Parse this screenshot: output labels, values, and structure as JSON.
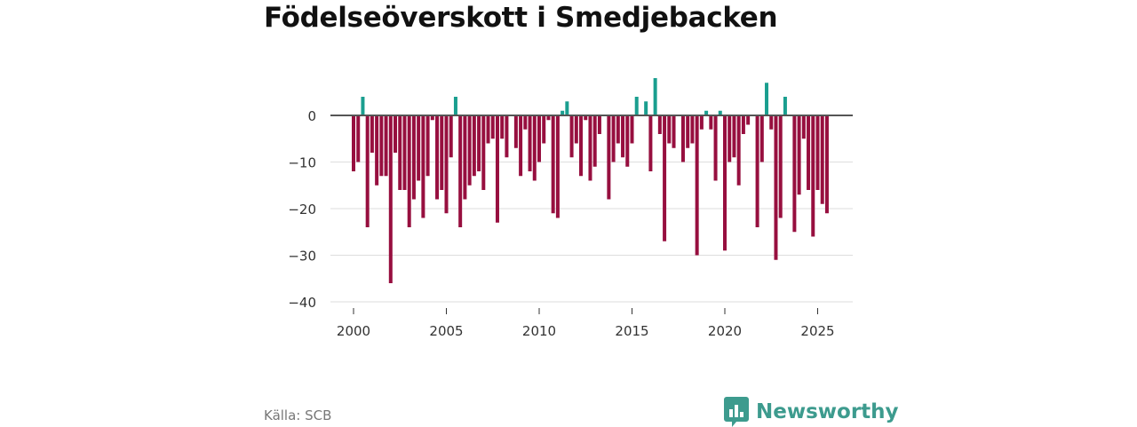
{
  "chart_data": {
    "type": "bar",
    "title": "Födelseöverskott i Smedjebacken",
    "xlabel": "",
    "ylabel": "",
    "x_start": 2000,
    "x_step_per_quarter": 0.25,
    "ylim": [
      -40,
      10
    ],
    "yticks": [
      0,
      -10,
      -20,
      -30,
      -40
    ],
    "ytick_labels": [
      "0",
      "−10",
      "−20",
      "−30",
      "−40"
    ],
    "xticks": [
      2000,
      2005,
      2010,
      2015,
      2020,
      2025
    ],
    "xtick_labels": [
      "2000",
      "2005",
      "2010",
      "2015",
      "2020",
      "2025"
    ],
    "values": [
      -12,
      -10,
      4,
      -24,
      -8,
      -15,
      -13,
      -13,
      -36,
      -8,
      -16,
      -16,
      -24,
      -18,
      -14,
      -22,
      -13,
      -1,
      -18,
      -16,
      -21,
      -9,
      4,
      -24,
      -18,
      -15,
      -13,
      -12,
      -16,
      -6,
      -5,
      -23,
      -5,
      -9,
      0,
      -7,
      -13,
      -3,
      -12,
      -14,
      -10,
      -6,
      -1,
      -21,
      -22,
      1,
      3,
      -9,
      -6,
      -13,
      -1,
      -14,
      -11,
      -4,
      0,
      -18,
      -10,
      -6,
      -9,
      -11,
      -6,
      4,
      0,
      3,
      -12,
      8,
      -4,
      -27,
      -6,
      -7,
      0,
      -10,
      -7,
      -6,
      -30,
      -3,
      1,
      -3,
      -14,
      1,
      -29,
      -10,
      -9,
      -15,
      -4,
      -2,
      0,
      -24,
      -10,
      7,
      -3,
      -31,
      -22,
      4,
      0,
      -25,
      -17,
      -5,
      -16,
      -26,
      -16,
      -19,
      -21
    ],
    "colors": {
      "positive": "#1a9e8f",
      "negative": "#970f3f",
      "zero_line": "#555555",
      "grid": "#dddddd"
    }
  },
  "footer": {
    "source": "Källa: SCB",
    "brand": "Newsworthy"
  }
}
